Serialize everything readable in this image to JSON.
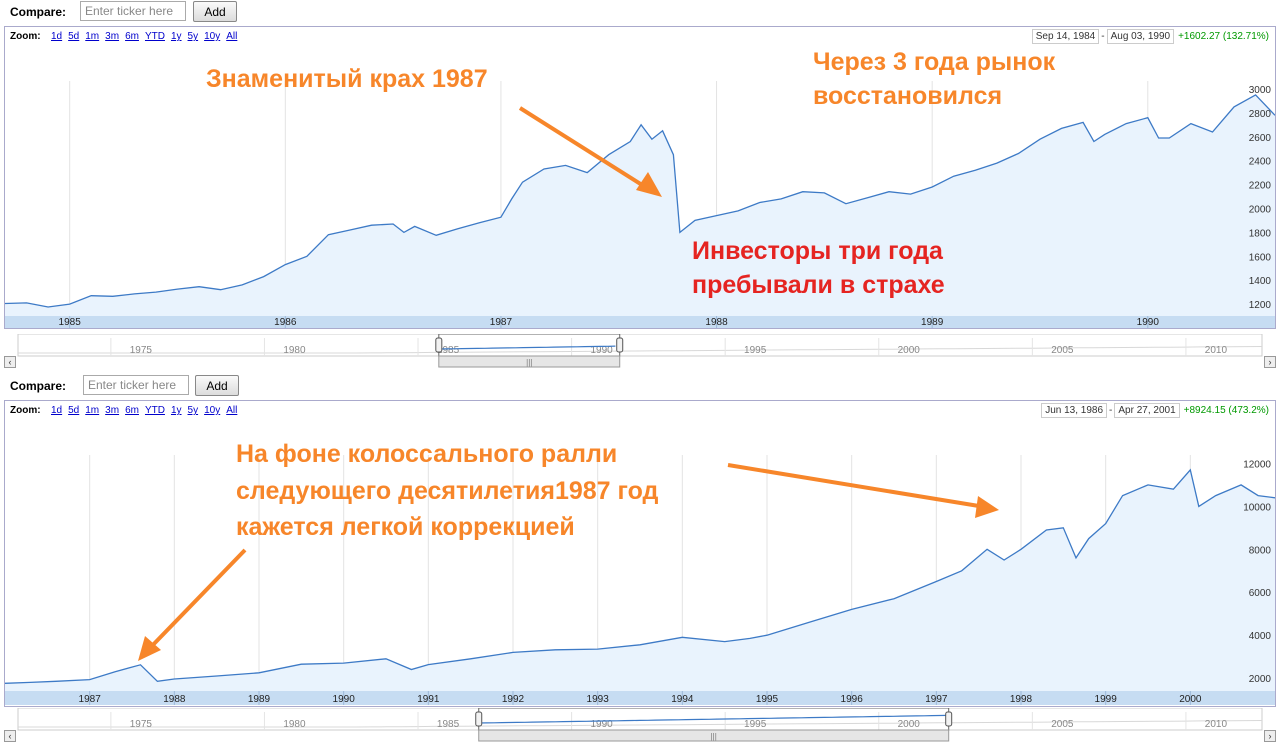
{
  "compare_label": "Compare:",
  "compare_placeholder": "Enter ticker here",
  "add_label": "Add",
  "zoom_label": "Zoom:",
  "zoom_options": [
    "1d",
    "5d",
    "1m",
    "3m",
    "6m",
    "YTD",
    "1y",
    "5y",
    "10y",
    "All"
  ],
  "colors": {
    "line": "#3d7ac6",
    "fill": "#e9f3fd",
    "axis_band": "#c6dcf2",
    "orange": "#f7862a",
    "red": "#e52421",
    "positive": "#009900"
  },
  "charts": [
    {
      "range_start": "Sep 14, 1984",
      "range_end": "Aug 03, 1990",
      "change": "+1602.27 (132.71%)",
      "annotations": {
        "crash": "Знаменитый крах 1987",
        "recovered_1": "Через 3 года рынок",
        "recovered_2": "восстановился",
        "fear_1": "Инвесторы три года",
        "fear_2": "пребывали в страхе"
      },
      "navigator_years": [
        "1975",
        "1980",
        "1985",
        "1990",
        "1995",
        "2000",
        "2005",
        "2010"
      ]
    },
    {
      "range_start": "Jun 13, 1986",
      "range_end": "Apr 27, 2001",
      "change": "+8924.15 (473.2%)",
      "annotations": {
        "rally_1": "На фоне колоссального ралли",
        "rally_2": "следующего десятилетия1987 год",
        "rally_3": "кажется легкой коррекцией"
      },
      "navigator_years": [
        "1975",
        "1980",
        "1985",
        "1990",
        "1995",
        "2000",
        "2005",
        "2010"
      ]
    }
  ],
  "chart_data": [
    {
      "type": "area",
      "x_unit": "year",
      "xlim": [
        1984.7,
        1990.59
      ],
      "ylim": [
        1100,
        3050
      ],
      "yticks": [
        1200,
        1400,
        1600,
        1800,
        2000,
        2200,
        2400,
        2600,
        2800,
        3000
      ],
      "xticks": [
        1985,
        1986,
        1987,
        1988,
        1989,
        1990
      ],
      "points": [
        [
          1984.7,
          1205
        ],
        [
          1984.8,
          1210
        ],
        [
          1984.9,
          1175
        ],
        [
          1985.0,
          1200
        ],
        [
          1985.1,
          1270
        ],
        [
          1985.2,
          1265
        ],
        [
          1985.3,
          1285
        ],
        [
          1985.4,
          1300
        ],
        [
          1985.5,
          1325
        ],
        [
          1985.6,
          1345
        ],
        [
          1985.7,
          1320
        ],
        [
          1985.8,
          1360
        ],
        [
          1985.9,
          1430
        ],
        [
          1986.0,
          1530
        ],
        [
          1986.1,
          1600
        ],
        [
          1986.2,
          1780
        ],
        [
          1986.3,
          1820
        ],
        [
          1986.4,
          1860
        ],
        [
          1986.5,
          1870
        ],
        [
          1986.55,
          1800
        ],
        [
          1986.6,
          1850
        ],
        [
          1986.7,
          1775
        ],
        [
          1986.8,
          1830
        ],
        [
          1986.9,
          1880
        ],
        [
          1987.0,
          1927
        ],
        [
          1987.05,
          2080
        ],
        [
          1987.1,
          2220
        ],
        [
          1987.2,
          2330
        ],
        [
          1987.3,
          2360
        ],
        [
          1987.4,
          2300
        ],
        [
          1987.5,
          2450
        ],
        [
          1987.6,
          2560
        ],
        [
          1987.65,
          2700
        ],
        [
          1987.7,
          2580
        ],
        [
          1987.75,
          2650
        ],
        [
          1987.8,
          2450
        ],
        [
          1987.83,
          1800
        ],
        [
          1987.9,
          1900
        ],
        [
          1988.0,
          1940
        ],
        [
          1988.1,
          1980
        ],
        [
          1988.2,
          2050
        ],
        [
          1988.3,
          2080
        ],
        [
          1988.4,
          2140
        ],
        [
          1988.5,
          2130
        ],
        [
          1988.6,
          2040
        ],
        [
          1988.7,
          2090
        ],
        [
          1988.8,
          2140
        ],
        [
          1988.9,
          2120
        ],
        [
          1989.0,
          2180
        ],
        [
          1989.1,
          2270
        ],
        [
          1989.2,
          2320
        ],
        [
          1989.3,
          2380
        ],
        [
          1989.4,
          2460
        ],
        [
          1989.5,
          2580
        ],
        [
          1989.6,
          2670
        ],
        [
          1989.7,
          2720
        ],
        [
          1989.75,
          2560
        ],
        [
          1989.8,
          2620
        ],
        [
          1989.9,
          2710
        ],
        [
          1990.0,
          2760
        ],
        [
          1990.05,
          2590
        ],
        [
          1990.1,
          2590
        ],
        [
          1990.2,
          2710
        ],
        [
          1990.3,
          2640
        ],
        [
          1990.4,
          2850
        ],
        [
          1990.5,
          2950
        ],
        [
          1990.59,
          2780
        ]
      ]
    },
    {
      "type": "area",
      "x_unit": "year",
      "xlim": [
        1986.0,
        2001.0
      ],
      "ylim": [
        1400,
        12300
      ],
      "yticks": [
        2000,
        4000,
        6000,
        8000,
        10000,
        12000
      ],
      "xticks": [
        1987,
        1988,
        1989,
        1990,
        1991,
        1992,
        1993,
        1994,
        1995,
        1996,
        1997,
        1998,
        1999,
        2000
      ],
      "points": [
        [
          1986.0,
          1760
        ],
        [
          1986.3,
          1800
        ],
        [
          1986.6,
          1850
        ],
        [
          1987.0,
          1930
        ],
        [
          1987.3,
          2300
        ],
        [
          1987.6,
          2620
        ],
        [
          1987.8,
          1850
        ],
        [
          1988.0,
          1960
        ],
        [
          1988.5,
          2100
        ],
        [
          1989.0,
          2250
        ],
        [
          1989.5,
          2650
        ],
        [
          1990.0,
          2700
        ],
        [
          1990.5,
          2900
        ],
        [
          1990.8,
          2400
        ],
        [
          1991.0,
          2630
        ],
        [
          1991.5,
          2900
        ],
        [
          1992.0,
          3200
        ],
        [
          1992.5,
          3320
        ],
        [
          1993.0,
          3350
        ],
        [
          1993.5,
          3550
        ],
        [
          1994.0,
          3900
        ],
        [
          1994.5,
          3700
        ],
        [
          1994.8,
          3850
        ],
        [
          1995.0,
          4000
        ],
        [
          1995.5,
          4600
        ],
        [
          1996.0,
          5200
        ],
        [
          1996.5,
          5700
        ],
        [
          1997.0,
          6500
        ],
        [
          1997.3,
          7000
        ],
        [
          1997.6,
          8000
        ],
        [
          1997.8,
          7500
        ],
        [
          1998.0,
          8000
        ],
        [
          1998.3,
          8900
        ],
        [
          1998.5,
          9000
        ],
        [
          1998.65,
          7600
        ],
        [
          1998.8,
          8500
        ],
        [
          1999.0,
          9200
        ],
        [
          1999.2,
          10500
        ],
        [
          1999.5,
          11000
        ],
        [
          1999.8,
          10800
        ],
        [
          2000.0,
          11700
        ],
        [
          2000.1,
          10000
        ],
        [
          2000.3,
          10500
        ],
        [
          2000.6,
          11000
        ],
        [
          2000.8,
          10500
        ],
        [
          2001.0,
          10400
        ]
      ]
    }
  ]
}
